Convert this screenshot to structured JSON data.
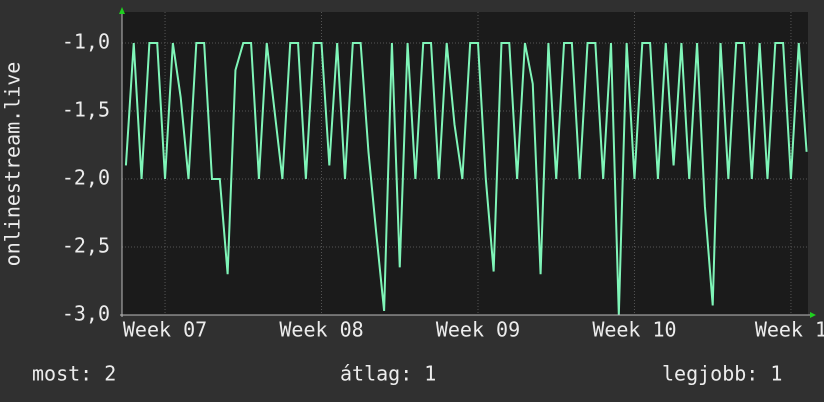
{
  "chart_data": {
    "type": "line",
    "y_label": "onlinestream.live",
    "x": [
      7.25,
      7.3,
      7.35,
      7.4,
      7.45,
      7.5,
      7.55,
      7.6,
      7.65,
      7.7,
      7.75,
      7.8,
      7.85,
      7.9,
      7.95,
      8.0,
      8.05,
      8.1,
      8.15,
      8.2,
      8.25,
      8.3,
      8.35,
      8.4,
      8.45,
      8.5,
      8.55,
      8.6,
      8.65,
      8.7,
      8.75,
      8.8,
      8.85,
      8.9,
      8.95,
      9.0,
      9.05,
      9.1,
      9.15,
      9.2,
      9.25,
      9.3,
      9.35,
      9.4,
      9.45,
      9.5,
      9.55,
      9.6,
      9.65,
      9.7,
      9.75,
      9.8,
      9.85,
      9.9,
      9.95,
      10.0,
      10.05,
      10.1,
      10.15,
      10.2,
      10.25,
      10.3,
      10.35,
      10.4,
      10.45,
      10.5,
      10.55,
      10.6,
      10.65,
      10.7,
      10.75,
      10.8,
      10.85,
      10.9,
      10.95,
      11.0,
      11.05,
      11.1,
      11.15,
      11.2,
      11.25,
      11.3,
      11.35,
      11.4,
      11.45,
      11.5,
      11.55,
      11.6
    ],
    "series": [
      {
        "color": "#7ff5b8",
        "values": [
          -1.9,
          -1,
          -2,
          -1,
          -1,
          -2,
          -1,
          -1.4,
          -2,
          -1,
          -1,
          -2,
          -2,
          -2.7,
          -1.2,
          -1,
          -1,
          -2,
          -1,
          -1.5,
          -2,
          -1,
          -1,
          -2,
          -1,
          -1,
          -1.9,
          -1,
          -2,
          -1,
          -1,
          -1.8,
          -2.4,
          -2.97,
          -1,
          -2.65,
          -1,
          -2,
          -1,
          -1,
          -2,
          -1,
          -1.6,
          -2,
          -1,
          -1,
          -2,
          -2.68,
          -1,
          -1,
          -2,
          -1,
          -1.3,
          -2.7,
          -1,
          -2,
          -1,
          -1,
          -2,
          -1,
          -1,
          -2,
          -1,
          -3.0,
          -1,
          -2,
          -1,
          -1,
          -2,
          -1,
          -1.9,
          -1,
          -2,
          -1,
          -2.2,
          -2.93,
          -1,
          -2,
          -1,
          -1,
          -2,
          -1,
          -2,
          -1,
          -1,
          -2,
          -1,
          -1.8
        ]
      }
    ],
    "xlim": [
      7.225,
      11.609
    ],
    "xticks": [
      {
        "value": 7.5,
        "label": "Week 07"
      },
      {
        "value": 8.5,
        "label": "Week 08"
      },
      {
        "value": 9.5,
        "label": "Week 09"
      },
      {
        "value": 10.5,
        "label": "Week 10"
      },
      {
        "value": 11.5,
        "label": "Week 1"
      }
    ],
    "ylim": [
      -3.0,
      -0.772
    ],
    "yticks": [
      {
        "value": -3.0,
        "label": "-3,0"
      },
      {
        "value": -2.5,
        "label": "-2,5"
      },
      {
        "value": -2.0,
        "label": "-2,0"
      },
      {
        "value": -1.5,
        "label": "-1,5"
      },
      {
        "value": -1.0,
        "label": "-1,0"
      }
    ],
    "grid": true,
    "footer": [
      "most: 2",
      "átlag: 1",
      "legjobb: 1"
    ]
  }
}
